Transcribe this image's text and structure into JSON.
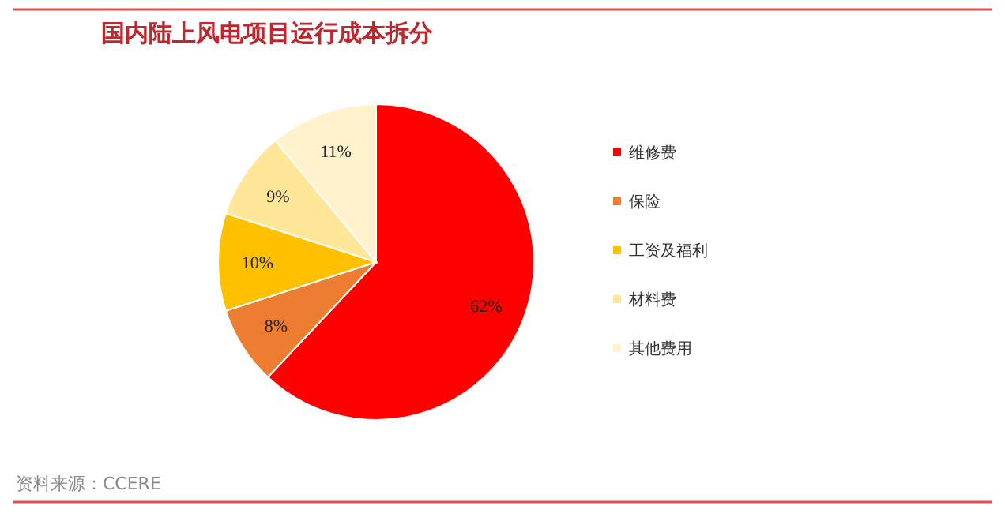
{
  "chart_data": {
    "type": "pie",
    "title": "国内陆上风电项目运行成本拆分",
    "categories": [
      "维修费",
      "保险",
      "工资及福利",
      "材料费",
      "其他费用"
    ],
    "values": [
      62,
      8,
      10,
      9,
      11
    ],
    "colors": [
      "#ff0000",
      "#ed7d31",
      "#ffc000",
      "#ffe699",
      "#fff2cc"
    ],
    "value_labels": [
      "62%",
      "8%",
      "10%",
      "9%",
      "11%"
    ],
    "legend": "right",
    "annotations": [
      "资料来源：CCERE"
    ]
  }
}
